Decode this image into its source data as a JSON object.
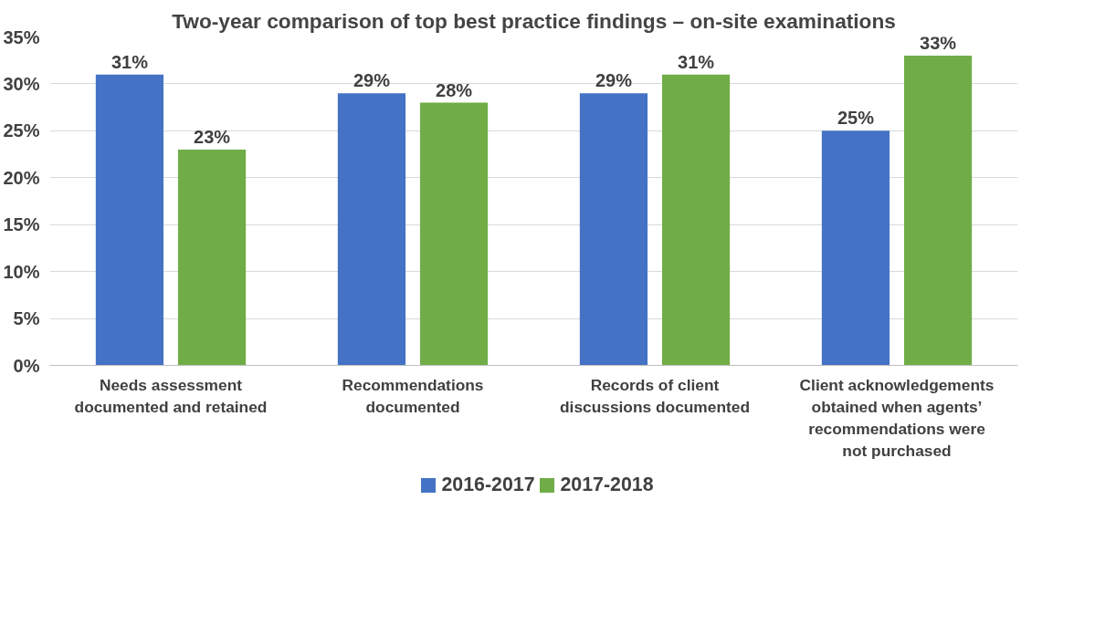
{
  "chart_data": {
    "type": "bar",
    "title": "Two-year comparison of top best practice findings – on-site examinations",
    "categories": [
      "Needs assessment documented and retained",
      "Recommendations documented",
      "Records of client discussions documented",
      "Client acknowledgements obtained when agents’ recommendations were not purchased"
    ],
    "series": [
      {
        "name": "2016-2017",
        "color": "#4472c4",
        "values": [
          31,
          29,
          29,
          25
        ],
        "value_labels": [
          "31%",
          "29%",
          "29%",
          "25%"
        ]
      },
      {
        "name": "2017-2018",
        "color": "#70ad47",
        "values": [
          23,
          28,
          31,
          33
        ],
        "value_labels": [
          "23%",
          "28%",
          "31%",
          "33%"
        ]
      }
    ],
    "ylim": [
      0,
      35
    ],
    "yticks": [
      {
        "value": 0,
        "label": "0%"
      },
      {
        "value": 5,
        "label": "5%"
      },
      {
        "value": 10,
        "label": "10%"
      },
      {
        "value": 15,
        "label": "15%"
      },
      {
        "value": 20,
        "label": "20%"
      },
      {
        "value": 25,
        "label": "25%"
      },
      {
        "value": 30,
        "label": "30%"
      },
      {
        "value": 35,
        "label": "35%"
      }
    ],
    "grid": "y",
    "legend": "bottom"
  }
}
